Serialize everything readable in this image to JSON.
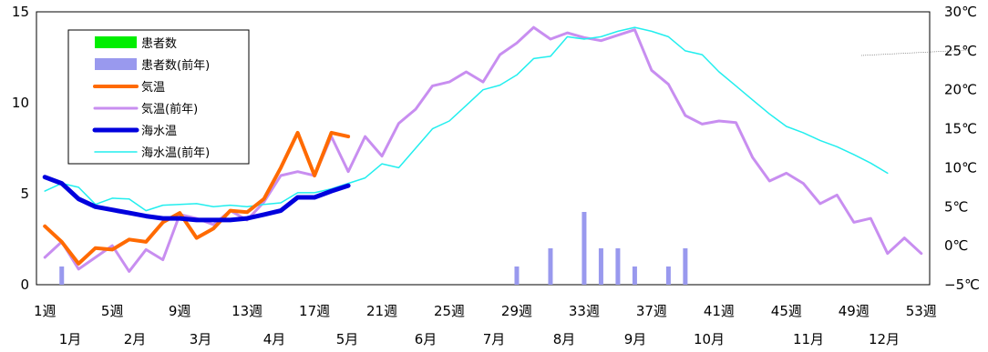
{
  "chart_data": {
    "type": "line",
    "left_axis": {
      "ticks": [
        "0",
        "5",
        "10",
        "15"
      ],
      "ylim": [
        0,
        15
      ]
    },
    "right_axis": {
      "ticks": [
        "−5℃",
        "0℃",
        "5℃",
        "10℃",
        "15℃",
        "20℃",
        "25℃",
        "30℃"
      ],
      "ylim": [
        -5,
        30
      ]
    },
    "x_week_ticks": [
      "1週",
      "5週",
      "9週",
      "13週",
      "17週",
      "21週",
      "25週",
      "29週",
      "33週",
      "37週",
      "41週",
      "45週",
      "49週",
      "53週"
    ],
    "month_labels": [
      "1月",
      "2月",
      "3月",
      "4月",
      "5月",
      "6月",
      "7月",
      "8月",
      "9月",
      "10月",
      "11月",
      "12月"
    ],
    "xlim": [
      1,
      53
    ],
    "grid": false,
    "legend_position": "top-left",
    "colors": {
      "patients": "#00ee00",
      "patients_prev": "#9999ee",
      "temp": "#ff6a00",
      "temp_prev": "#c88ef0",
      "sea": "#0000dd",
      "sea_prev": "#22eeee"
    },
    "series": [
      {
        "name": "患者数",
        "axis": "left",
        "kind": "bar",
        "weeks": [],
        "values": []
      },
      {
        "name": "患者数(前年)",
        "axis": "left",
        "kind": "bar",
        "weeks": [
          2,
          29,
          31,
          33,
          34,
          35,
          36,
          38,
          39
        ],
        "values": [
          1,
          1,
          2,
          4,
          2,
          2,
          1,
          1,
          2
        ]
      },
      {
        "name": "気温",
        "axis": "right",
        "kind": "line",
        "values": [
          2.5,
          0.5,
          -2.3,
          -0.3,
          -0.5,
          0.8,
          0.5,
          3,
          4.2,
          1,
          2.2,
          4.5,
          4.3,
          6,
          10,
          14.5,
          9,
          14.5,
          14
        ]
      },
      {
        "name": "気温(前年)",
        "axis": "right",
        "kind": "line",
        "values": [
          -1.5,
          0.5,
          -3,
          -1.5,
          0,
          -3.3,
          -0.5,
          -1.8,
          4,
          3.5,
          2.7,
          4.5,
          3.3,
          5.6,
          9,
          9.5,
          9,
          14,
          9.5,
          14,
          11.5,
          15.7,
          17.5,
          20.5,
          21,
          22.3,
          21,
          24.5,
          26,
          28,
          26.5,
          27.3,
          26.7,
          26.3,
          27,
          27.7,
          22.5,
          20.7,
          16.7,
          15.6,
          16,
          15.8,
          11.3,
          8.3,
          9.3,
          8,
          5.4,
          6.5,
          3,
          3.5,
          -1,
          1,
          -1
        ]
      },
      {
        "name": "海水温",
        "axis": "right",
        "kind": "line",
        "values": [
          8.8,
          8,
          6,
          5,
          4.6,
          4.2,
          3.8,
          3.5,
          3.5,
          3.3,
          3.3,
          3.3,
          3.5,
          4,
          4.5,
          6.2,
          6.2,
          7,
          7.7
        ]
      },
      {
        "name": "海水温(前年)",
        "axis": "right",
        "kind": "line",
        "values": [
          7,
          8,
          7.5,
          5.3,
          6.1,
          6,
          4.5,
          5.2,
          5.3,
          5.4,
          5,
          5.2,
          5,
          5.3,
          5.5,
          6.8,
          6.8,
          7.3,
          8,
          8.7,
          10.5,
          10,
          12.5,
          15,
          16,
          18,
          20,
          20.6,
          21.9,
          24,
          24.3,
          26.8,
          26.5,
          26.8,
          27.5,
          28,
          27.5,
          26.8,
          25,
          24.5,
          22.3,
          20.5,
          18.7,
          16.9,
          15.3,
          14.5,
          13.5,
          12.7,
          11.7,
          10.6,
          9.3
        ]
      }
    ]
  }
}
